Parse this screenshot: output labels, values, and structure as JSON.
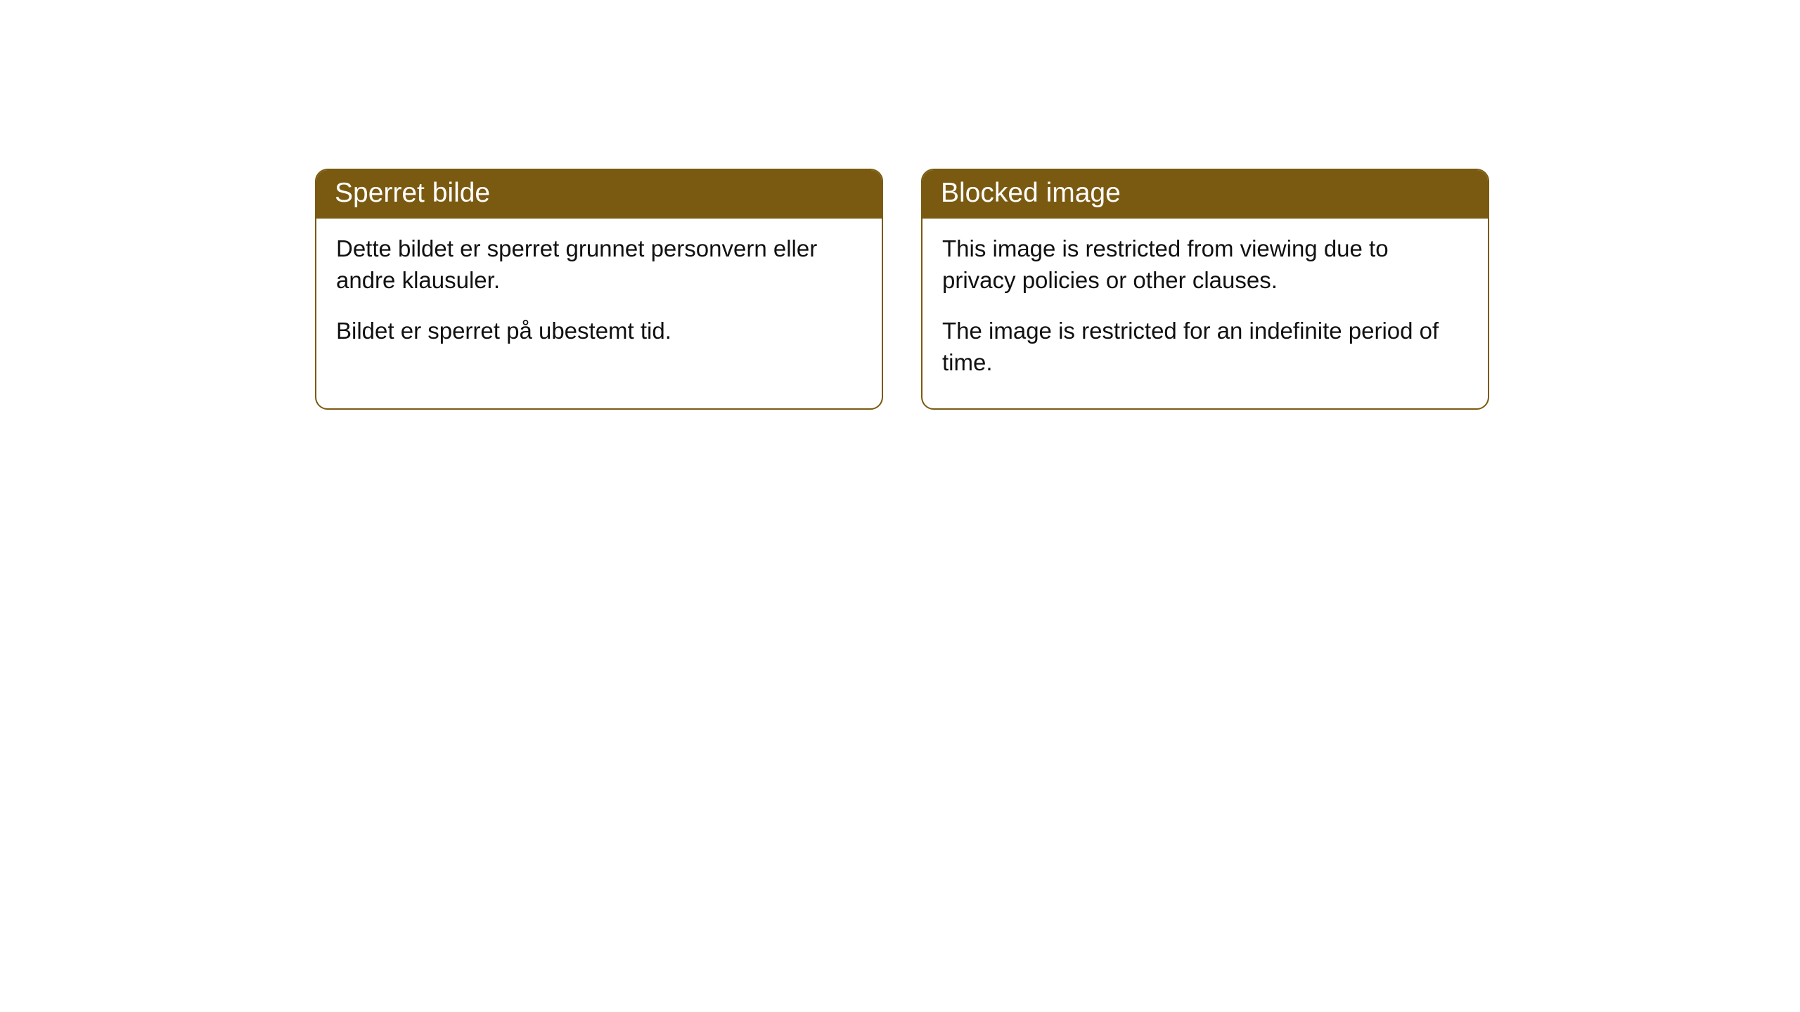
{
  "cards": [
    {
      "title": "Sperret bilde",
      "paragraph1": "Dette bildet er sperret grunnet personvern eller andre klausuler.",
      "paragraph2": "Bildet er sperret på ubestemt tid."
    },
    {
      "title": "Blocked image",
      "paragraph1": "This image is restricted from viewing due to privacy policies or other clauses.",
      "paragraph2": "The image is restricted for an indefinite period of time."
    }
  ],
  "styling": {
    "header_background_color": "#7a5a10",
    "header_text_color": "#ffffff",
    "border_color": "#7a5a10",
    "body_text_color": "#111111",
    "background_color": "#ffffff",
    "border_radius": 18,
    "header_fontsize": 39,
    "body_fontsize": 33
  }
}
